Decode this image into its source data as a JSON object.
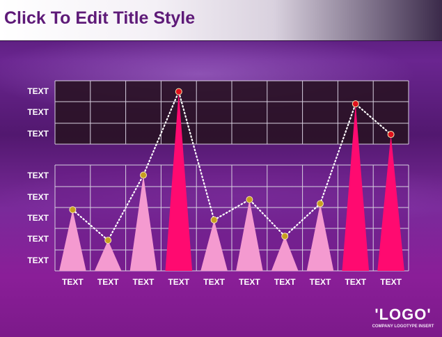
{
  "slide": {
    "title": "Click To Edit Title Style",
    "logo": "'LOGO'",
    "logo_subtitle": "COMPANY LOGOTYPE INSERT"
  },
  "chart_data": {
    "type": "line",
    "subtype": "triangle-peaks with dotted line",
    "title": "",
    "xlabel": "",
    "ylabel": "",
    "categories": [
      "TEXT",
      "TEXT",
      "TEXT",
      "TEXT",
      "TEXT",
      "TEXT",
      "TEXT",
      "TEXT",
      "TEXT",
      "TEXT"
    ],
    "y_tick_labels": [
      "TEXT",
      "TEXT",
      "TEXT",
      "TEXT",
      "TEXT",
      "TEXT",
      "TEXT",
      "TEXT"
    ],
    "values": [
      3.0,
      1.5,
      4.7,
      8.8,
      2.5,
      3.5,
      1.7,
      3.3,
      8.2,
      6.7
    ],
    "ylim": [
      0,
      9
    ],
    "highlight": [
      false,
      false,
      false,
      true,
      false,
      false,
      false,
      false,
      true,
      true
    ],
    "grid": true,
    "axis_break": true,
    "colors": {
      "peak_normal": "#f49ad0",
      "peak_highlight": "#ff0a70",
      "marker_normal": "#c7a020",
      "marker_highlight": "#e0101c",
      "line": "#ffffff",
      "grid_line": "#d8d0e0",
      "lower_panel_bg": "#6a1e86",
      "upper_panel_bg": "#2a1226"
    }
  }
}
